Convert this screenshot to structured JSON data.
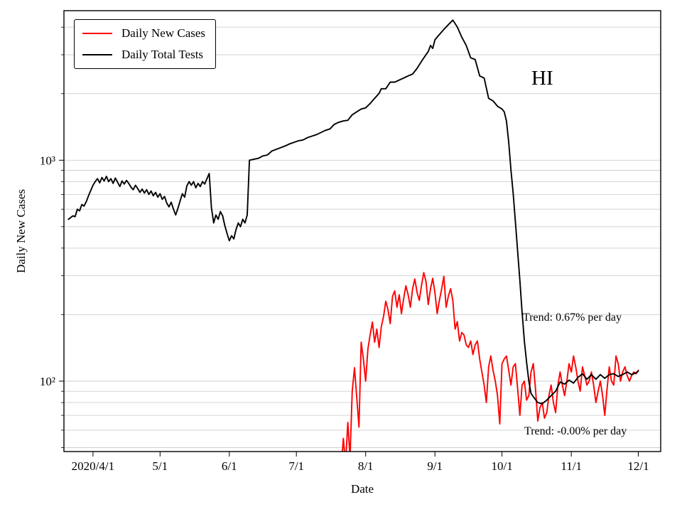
{
  "chart_data": {
    "type": "line",
    "title": "",
    "xlabel": "Date",
    "ylabel": "Daily New Cases",
    "yscale": "log",
    "grid": true,
    "legend_position": "upper left",
    "x_unit": "days since 2020/3/19",
    "xlim": [
      0,
      267
    ],
    "ylim": [
      48,
      4750
    ],
    "colors": {
      "background": "#ffffff",
      "grid": "#cfcfcf",
      "axis": "#000000",
      "cases_line": "#ff0000",
      "tests_line": "#000000"
    },
    "x_ticks": [
      {
        "day": 13,
        "label": "2020/4/1"
      },
      {
        "day": 43,
        "label": "5/1"
      },
      {
        "day": 74,
        "label": "6/1"
      },
      {
        "day": 104,
        "label": "7/1"
      },
      {
        "day": 135,
        "label": "8/1"
      },
      {
        "day": 166,
        "label": "9/1"
      },
      {
        "day": 196,
        "label": "10/1"
      },
      {
        "day": 227,
        "label": "11/1"
      },
      {
        "day": 257,
        "label": "12/1"
      }
    ],
    "y_ticks_major": [
      {
        "value": 1000,
        "label": "10³"
      },
      {
        "value": 100,
        "label": "10²"
      }
    ],
    "y_ticks_minor": [
      50,
      60,
      70,
      80,
      90,
      200,
      300,
      400,
      500,
      600,
      700,
      800,
      900,
      2000,
      3000,
      4000
    ],
    "legend": [
      "Daily New Cases",
      "Daily Total Tests"
    ],
    "annotations": {
      "state": "HI",
      "trend_tests": "Trend: 0.67% per day",
      "trend_cases": "Trend: -0.00% per day"
    },
    "series": [
      {
        "name": "Daily New Cases",
        "color": "#ff0000",
        "points": [
          [
            124,
            40
          ],
          [
            125,
            55
          ],
          [
            126,
            42
          ],
          [
            127,
            65
          ],
          [
            128,
            45
          ],
          [
            129,
            90
          ],
          [
            130,
            115
          ],
          [
            131,
            85
          ],
          [
            132,
            62
          ],
          [
            133,
            150
          ],
          [
            134,
            125
          ],
          [
            135,
            100
          ],
          [
            136,
            140
          ],
          [
            137,
            162
          ],
          [
            138,
            185
          ],
          [
            139,
            150
          ],
          [
            140,
            172
          ],
          [
            141,
            142
          ],
          [
            142,
            176
          ],
          [
            143,
            196
          ],
          [
            144,
            230
          ],
          [
            145,
            210
          ],
          [
            146,
            182
          ],
          [
            147,
            242
          ],
          [
            148,
            256
          ],
          [
            149,
            216
          ],
          [
            150,
            246
          ],
          [
            151,
            202
          ],
          [
            152,
            236
          ],
          [
            153,
            270
          ],
          [
            154,
            246
          ],
          [
            155,
            216
          ],
          [
            156,
            262
          ],
          [
            157,
            290
          ],
          [
            158,
            252
          ],
          [
            159,
            232
          ],
          [
            160,
            272
          ],
          [
            161,
            310
          ],
          [
            162,
            282
          ],
          [
            163,
            222
          ],
          [
            164,
            262
          ],
          [
            165,
            292
          ],
          [
            166,
            252
          ],
          [
            167,
            202
          ],
          [
            168,
            232
          ],
          [
            169,
            262
          ],
          [
            170,
            298
          ],
          [
            171,
            216
          ],
          [
            172,
            242
          ],
          [
            173,
            262
          ],
          [
            174,
            232
          ],
          [
            175,
            172
          ],
          [
            176,
            186
          ],
          [
            177,
            152
          ],
          [
            178,
            166
          ],
          [
            179,
            162
          ],
          [
            180,
            146
          ],
          [
            181,
            142
          ],
          [
            182,
            152
          ],
          [
            183,
            132
          ],
          [
            184,
            146
          ],
          [
            185,
            152
          ],
          [
            186,
            126
          ],
          [
            187,
            110
          ],
          [
            188,
            96
          ],
          [
            189,
            80
          ],
          [
            190,
            116
          ],
          [
            191,
            130
          ],
          [
            192,
            112
          ],
          [
            193,
            100
          ],
          [
            194,
            86
          ],
          [
            195,
            64
          ],
          [
            196,
            120
          ],
          [
            197,
            126
          ],
          [
            198,
            130
          ],
          [
            199,
            112
          ],
          [
            200,
            96
          ],
          [
            201,
            116
          ],
          [
            202,
            120
          ],
          [
            203,
            92
          ],
          [
            204,
            70
          ],
          [
            205,
            96
          ],
          [
            206,
            100
          ],
          [
            207,
            82
          ],
          [
            208,
            86
          ],
          [
            209,
            110
          ],
          [
            210,
            120
          ],
          [
            211,
            92
          ],
          [
            212,
            66
          ],
          [
            213,
            76
          ],
          [
            214,
            80
          ],
          [
            215,
            68
          ],
          [
            216,
            72
          ],
          [
            217,
            86
          ],
          [
            218,
            96
          ],
          [
            219,
            80
          ],
          [
            220,
            72
          ],
          [
            221,
            96
          ],
          [
            222,
            110
          ],
          [
            223,
            96
          ],
          [
            224,
            86
          ],
          [
            225,
            100
          ],
          [
            226,
            120
          ],
          [
            227,
            110
          ],
          [
            228,
            130
          ],
          [
            229,
            116
          ],
          [
            230,
            100
          ],
          [
            231,
            90
          ],
          [
            232,
            116
          ],
          [
            233,
            106
          ],
          [
            234,
            96
          ],
          [
            235,
            100
          ],
          [
            236,
            110
          ],
          [
            237,
            96
          ],
          [
            238,
            80
          ],
          [
            239,
            90
          ],
          [
            240,
            100
          ],
          [
            241,
            86
          ],
          [
            242,
            70
          ],
          [
            243,
            92
          ],
          [
            244,
            116
          ],
          [
            245,
            100
          ],
          [
            246,
            96
          ],
          [
            247,
            130
          ],
          [
            248,
            120
          ],
          [
            249,
            100
          ],
          [
            250,
            110
          ],
          [
            251,
            116
          ],
          [
            252,
            106
          ],
          [
            253,
            100
          ],
          [
            254,
            106
          ],
          [
            255,
            110
          ],
          [
            256,
            108
          ],
          [
            257,
            112
          ]
        ]
      },
      {
        "name": "Daily Total Tests",
        "color": "#000000",
        "points": [
          [
            2,
            540
          ],
          [
            4,
            560
          ],
          [
            5,
            555
          ],
          [
            6,
            600
          ],
          [
            7,
            590
          ],
          [
            8,
            630
          ],
          [
            9,
            620
          ],
          [
            10,
            650
          ],
          [
            11,
            690
          ],
          [
            12,
            730
          ],
          [
            13,
            770
          ],
          [
            14,
            800
          ],
          [
            15,
            825
          ],
          [
            16,
            790
          ],
          [
            17,
            835
          ],
          [
            18,
            805
          ],
          [
            19,
            845
          ],
          [
            20,
            800
          ],
          [
            21,
            825
          ],
          [
            22,
            785
          ],
          [
            23,
            830
          ],
          [
            24,
            795
          ],
          [
            25,
            760
          ],
          [
            26,
            805
          ],
          [
            27,
            780
          ],
          [
            28,
            810
          ],
          [
            29,
            785
          ],
          [
            30,
            755
          ],
          [
            31,
            735
          ],
          [
            32,
            770
          ],
          [
            33,
            745
          ],
          [
            34,
            715
          ],
          [
            35,
            740
          ],
          [
            36,
            710
          ],
          [
            37,
            735
          ],
          [
            38,
            700
          ],
          [
            39,
            725
          ],
          [
            40,
            690
          ],
          [
            41,
            715
          ],
          [
            42,
            680
          ],
          [
            43,
            705
          ],
          [
            44,
            665
          ],
          [
            45,
            685
          ],
          [
            46,
            640
          ],
          [
            47,
            615
          ],
          [
            48,
            645
          ],
          [
            49,
            600
          ],
          [
            50,
            565
          ],
          [
            51,
            605
          ],
          [
            52,
            655
          ],
          [
            53,
            705
          ],
          [
            54,
            680
          ],
          [
            55,
            765
          ],
          [
            56,
            800
          ],
          [
            57,
            770
          ],
          [
            58,
            800
          ],
          [
            59,
            750
          ],
          [
            60,
            785
          ],
          [
            61,
            760
          ],
          [
            62,
            800
          ],
          [
            63,
            780
          ],
          [
            64,
            825
          ],
          [
            65,
            870
          ],
          [
            66,
            610
          ],
          [
            67,
            520
          ],
          [
            68,
            565
          ],
          [
            69,
            540
          ],
          [
            70,
            585
          ],
          [
            71,
            560
          ],
          [
            72,
            505
          ],
          [
            73,
            465
          ],
          [
            74,
            432
          ],
          [
            75,
            455
          ],
          [
            76,
            440
          ],
          [
            77,
            485
          ],
          [
            78,
            520
          ],
          [
            79,
            500
          ],
          [
            80,
            540
          ],
          [
            81,
            520
          ],
          [
            82,
            565
          ],
          [
            83,
            1000
          ],
          [
            85,
            1010
          ],
          [
            87,
            1020
          ],
          [
            89,
            1045
          ],
          [
            91,
            1055
          ],
          [
            93,
            1100
          ],
          [
            95,
            1120
          ],
          [
            97,
            1140
          ],
          [
            99,
            1160
          ],
          [
            101,
            1185
          ],
          [
            103,
            1205
          ],
          [
            105,
            1225
          ],
          [
            107,
            1235
          ],
          [
            109,
            1265
          ],
          [
            111,
            1285
          ],
          [
            113,
            1305
          ],
          [
            115,
            1335
          ],
          [
            117,
            1365
          ],
          [
            119,
            1385
          ],
          [
            121,
            1455
          ],
          [
            123,
            1485
          ],
          [
            125,
            1505
          ],
          [
            127,
            1515
          ],
          [
            129,
            1605
          ],
          [
            131,
            1655
          ],
          [
            133,
            1705
          ],
          [
            135,
            1725
          ],
          [
            137,
            1805
          ],
          [
            139,
            1905
          ],
          [
            141,
            2005
          ],
          [
            142,
            2105
          ],
          [
            144,
            2105
          ],
          [
            146,
            2255
          ],
          [
            148,
            2255
          ],
          [
            150,
            2305
          ],
          [
            152,
            2355
          ],
          [
            154,
            2405
          ],
          [
            156,
            2455
          ],
          [
            158,
            2605
          ],
          [
            160,
            2805
          ],
          [
            162,
            3005
          ],
          [
            163,
            3105
          ],
          [
            164,
            3305
          ],
          [
            165,
            3205
          ],
          [
            166,
            3505
          ],
          [
            168,
            3705
          ],
          [
            170,
            3905
          ],
          [
            172,
            4105
          ],
          [
            174,
            4305
          ],
          [
            175,
            4155
          ],
          [
            176,
            4005
          ],
          [
            178,
            3605
          ],
          [
            180,
            3305
          ],
          [
            182,
            2905
          ],
          [
            184,
            2855
          ],
          [
            186,
            2405
          ],
          [
            188,
            2355
          ],
          [
            190,
            1905
          ],
          [
            192,
            1855
          ],
          [
            194,
            1755
          ],
          [
            196,
            1705
          ],
          [
            197,
            1655
          ],
          [
            198,
            1505
          ],
          [
            199,
            1205
          ],
          [
            200,
            905
          ],
          [
            201,
            705
          ],
          [
            202,
            525
          ],
          [
            203,
            385
          ],
          [
            204,
            285
          ],
          [
            205,
            205
          ],
          [
            206,
            152
          ],
          [
            207,
            122
          ],
          [
            208,
            100
          ],
          [
            209,
            88
          ],
          [
            210,
            85
          ],
          [
            212,
            80
          ],
          [
            214,
            79
          ],
          [
            216,
            82
          ],
          [
            218,
            86
          ],
          [
            220,
            90
          ],
          [
            222,
            99
          ],
          [
            224,
            97
          ],
          [
            226,
            101
          ],
          [
            228,
            98
          ],
          [
            230,
            104
          ],
          [
            232,
            108
          ],
          [
            234,
            102
          ],
          [
            236,
            107
          ],
          [
            238,
            102
          ],
          [
            240,
            107
          ],
          [
            242,
            103
          ],
          [
            244,
            107
          ],
          [
            246,
            108
          ],
          [
            248,
            105
          ],
          [
            250,
            107
          ],
          [
            252,
            110
          ],
          [
            254,
            107
          ],
          [
            256,
            109
          ],
          [
            257,
            111
          ]
        ]
      }
    ]
  }
}
